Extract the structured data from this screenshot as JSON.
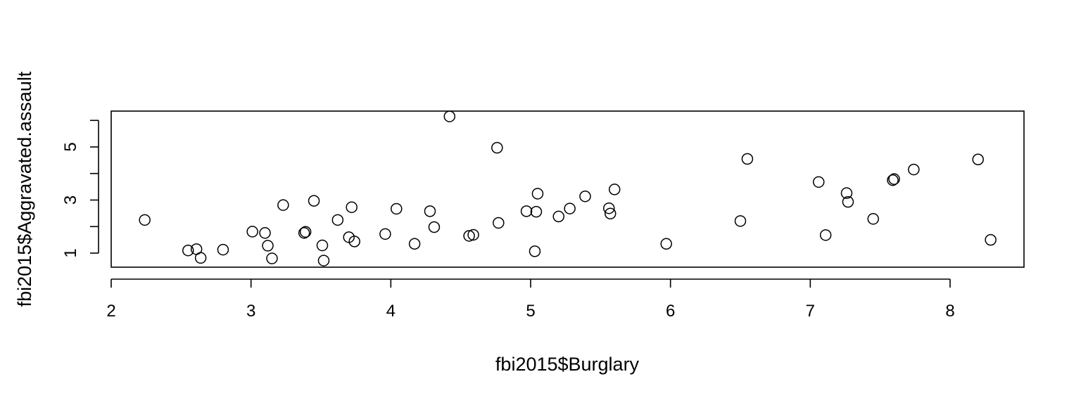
{
  "chart_data": {
    "type": "scatter",
    "title": "",
    "xlabel": "fbi2015$Burglary",
    "ylabel": "fbi2015$Aggravated.assault",
    "xlim": [
      2,
      8.5
    ],
    "ylim": [
      0.5,
      6.3
    ],
    "x_ticks": [
      2,
      3,
      4,
      5,
      6,
      7,
      8
    ],
    "x_tick_labels": [
      "2",
      "3",
      "4",
      "5",
      "6",
      "7",
      "8"
    ],
    "y_ticks": [
      1,
      2,
      3,
      4,
      5,
      6
    ],
    "y_tick_labels": [
      "1",
      "",
      "3",
      "",
      "5",
      ""
    ],
    "grid": false,
    "legend": "none",
    "points": [
      {
        "x": 2.24,
        "y": 2.25
      },
      {
        "x": 2.55,
        "y": 1.1
      },
      {
        "x": 2.61,
        "y": 1.15
      },
      {
        "x": 2.64,
        "y": 0.82
      },
      {
        "x": 2.8,
        "y": 1.13
      },
      {
        "x": 3.01,
        "y": 1.81
      },
      {
        "x": 3.1,
        "y": 1.76
      },
      {
        "x": 3.12,
        "y": 1.28
      },
      {
        "x": 3.15,
        "y": 0.8
      },
      {
        "x": 3.23,
        "y": 2.81
      },
      {
        "x": 3.38,
        "y": 1.76
      },
      {
        "x": 3.39,
        "y": 1.8
      },
      {
        "x": 3.45,
        "y": 2.97
      },
      {
        "x": 3.51,
        "y": 1.29
      },
      {
        "x": 3.52,
        "y": 0.72
      },
      {
        "x": 3.62,
        "y": 2.25
      },
      {
        "x": 3.7,
        "y": 1.6
      },
      {
        "x": 3.72,
        "y": 2.73
      },
      {
        "x": 3.74,
        "y": 1.44
      },
      {
        "x": 3.96,
        "y": 1.72
      },
      {
        "x": 4.04,
        "y": 2.67
      },
      {
        "x": 4.17,
        "y": 1.35
      },
      {
        "x": 4.28,
        "y": 2.58
      },
      {
        "x": 4.31,
        "y": 1.98
      },
      {
        "x": 4.42,
        "y": 6.15
      },
      {
        "x": 4.56,
        "y": 1.65
      },
      {
        "x": 4.59,
        "y": 1.69
      },
      {
        "x": 4.76,
        "y": 4.97
      },
      {
        "x": 4.77,
        "y": 2.14
      },
      {
        "x": 4.97,
        "y": 2.58
      },
      {
        "x": 5.03,
        "y": 1.07
      },
      {
        "x": 5.04,
        "y": 2.56
      },
      {
        "x": 5.05,
        "y": 3.24
      },
      {
        "x": 5.2,
        "y": 2.38
      },
      {
        "x": 5.28,
        "y": 2.68
      },
      {
        "x": 5.39,
        "y": 3.14
      },
      {
        "x": 5.56,
        "y": 2.69
      },
      {
        "x": 5.57,
        "y": 2.49
      },
      {
        "x": 5.6,
        "y": 3.4
      },
      {
        "x": 5.97,
        "y": 1.35
      },
      {
        "x": 6.5,
        "y": 2.21
      },
      {
        "x": 6.55,
        "y": 4.55
      },
      {
        "x": 7.06,
        "y": 3.68
      },
      {
        "x": 7.11,
        "y": 1.68
      },
      {
        "x": 7.26,
        "y": 3.26
      },
      {
        "x": 7.27,
        "y": 2.93
      },
      {
        "x": 7.45,
        "y": 2.29
      },
      {
        "x": 7.59,
        "y": 3.75
      },
      {
        "x": 7.6,
        "y": 3.79
      },
      {
        "x": 7.74,
        "y": 4.15
      },
      {
        "x": 8.2,
        "y": 4.53
      },
      {
        "x": 8.29,
        "y": 1.5
      }
    ]
  }
}
